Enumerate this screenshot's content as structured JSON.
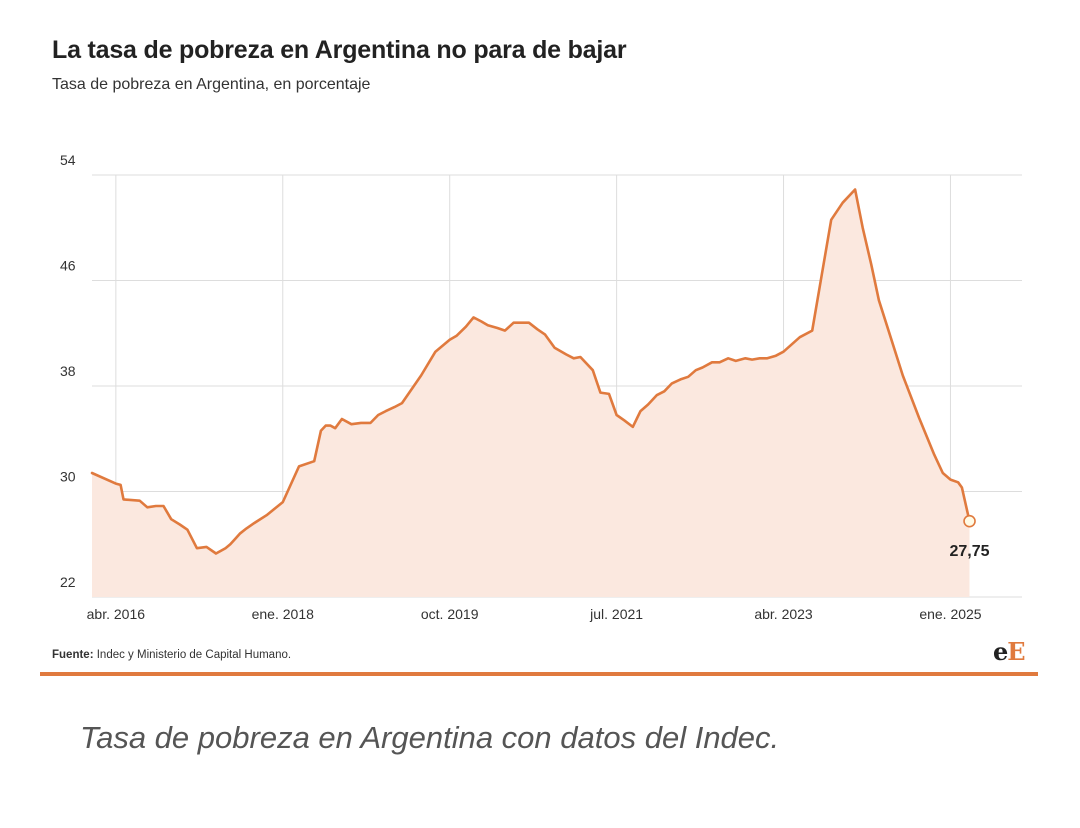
{
  "header": {
    "title": "La tasa de pobreza en Argentina no para de bajar",
    "subtitle": "Tasa de pobreza en Argentina, en porcentaje"
  },
  "footer": {
    "source_label": "Fuente:",
    "source_text": "Indec y Ministerio de Capital Humano.",
    "logo_first": "e",
    "logo_second": "E"
  },
  "caption": "Tasa de pobreza en Argentina con datos del Indec.",
  "colors": {
    "line": "#e07a3e",
    "area": "#fbe8df",
    "grid": "#dddddd",
    "text": "#333333"
  },
  "chart_data": {
    "type": "area",
    "title": "La tasa de pobreza en Argentina no para de bajar",
    "subtitle": "Tasa de pobreza en Argentina, en porcentaje",
    "xlabel": "",
    "ylabel": "",
    "xlim": [
      2016.0,
      2025.75
    ],
    "ylim": [
      22,
      54
    ],
    "yticks": [
      22,
      30,
      38,
      46,
      54
    ],
    "xticks": [
      {
        "label": "abr. 2016",
        "value": 2016.25
      },
      {
        "label": "ene. 2018",
        "value": 2018.0
      },
      {
        "label": "oct. 2019",
        "value": 2019.75
      },
      {
        "label": "jul. 2021",
        "value": 2021.5
      },
      {
        "label": "abr. 2023",
        "value": 2023.25
      },
      {
        "label": "ene. 2025",
        "value": 2025.0
      }
    ],
    "grid": true,
    "series": [
      {
        "name": "Tasa de pobreza",
        "x": [
          2016.0,
          2016.25,
          2016.3,
          2016.33,
          2016.5,
          2016.58,
          2016.67,
          2016.75,
          2016.83,
          2016.92,
          2017.0,
          2017.1,
          2017.2,
          2017.3,
          2017.4,
          2017.45,
          2017.5,
          2017.55,
          2017.62,
          2017.7,
          2017.83,
          2018.0,
          2018.17,
          2018.33,
          2018.4,
          2018.45,
          2018.5,
          2018.55,
          2018.62,
          2018.72,
          2018.82,
          2018.92,
          2019.0,
          2019.08,
          2019.17,
          2019.25,
          2019.45,
          2019.6,
          2019.75,
          2019.82,
          2019.92,
          2020.0,
          2020.08,
          2020.15,
          2020.25,
          2020.33,
          2020.42,
          2020.5,
          2020.58,
          2020.67,
          2020.75,
          2020.85,
          2020.97,
          2021.05,
          2021.12,
          2021.25,
          2021.33,
          2021.42,
          2021.5,
          2021.58,
          2021.67,
          2021.75,
          2021.83,
          2021.92,
          2022.0,
          2022.08,
          2022.17,
          2022.25,
          2022.33,
          2022.4,
          2022.5,
          2022.58,
          2022.67,
          2022.75,
          2022.85,
          2022.92,
          2023.0,
          2023.08,
          2023.17,
          2023.25,
          2023.42,
          2023.55,
          2023.65,
          2023.75,
          2023.87,
          2024.0,
          2024.08,
          2024.17,
          2024.25,
          2024.5,
          2024.67,
          2024.75,
          2024.83,
          2024.92,
          2025.0,
          2025.08,
          2025.12,
          2025.2
        ],
        "values": [
          31.4,
          30.6,
          30.5,
          29.4,
          29.3,
          28.8,
          28.9,
          28.9,
          27.9,
          27.5,
          27.1,
          25.7,
          25.8,
          25.3,
          25.7,
          26.0,
          26.4,
          26.8,
          27.2,
          27.6,
          28.2,
          29.2,
          31.9,
          32.3,
          34.6,
          35.0,
          35.0,
          34.8,
          35.5,
          35.1,
          35.2,
          35.2,
          35.8,
          36.1,
          36.4,
          36.7,
          38.8,
          40.6,
          41.5,
          41.8,
          42.5,
          43.2,
          42.9,
          42.6,
          42.4,
          42.2,
          42.8,
          42.8,
          42.8,
          42.3,
          41.9,
          40.9,
          40.4,
          40.1,
          40.2,
          39.2,
          37.5,
          37.4,
          35.8,
          35.4,
          34.9,
          36.1,
          36.6,
          37.3,
          37.6,
          38.2,
          38.5,
          38.7,
          39.2,
          39.4,
          39.8,
          39.8,
          40.1,
          39.9,
          40.1,
          40.0,
          40.1,
          40.1,
          40.3,
          40.6,
          41.7,
          42.2,
          46.4,
          50.6,
          51.9,
          52.9,
          50.0,
          47.2,
          44.5,
          38.8,
          35.6,
          34.2,
          32.8,
          31.4,
          30.9,
          30.7,
          30.3,
          27.75
        ]
      }
    ],
    "annotations": [
      {
        "text": "27,75",
        "x": 2025.2,
        "y": 27.75
      }
    ]
  }
}
